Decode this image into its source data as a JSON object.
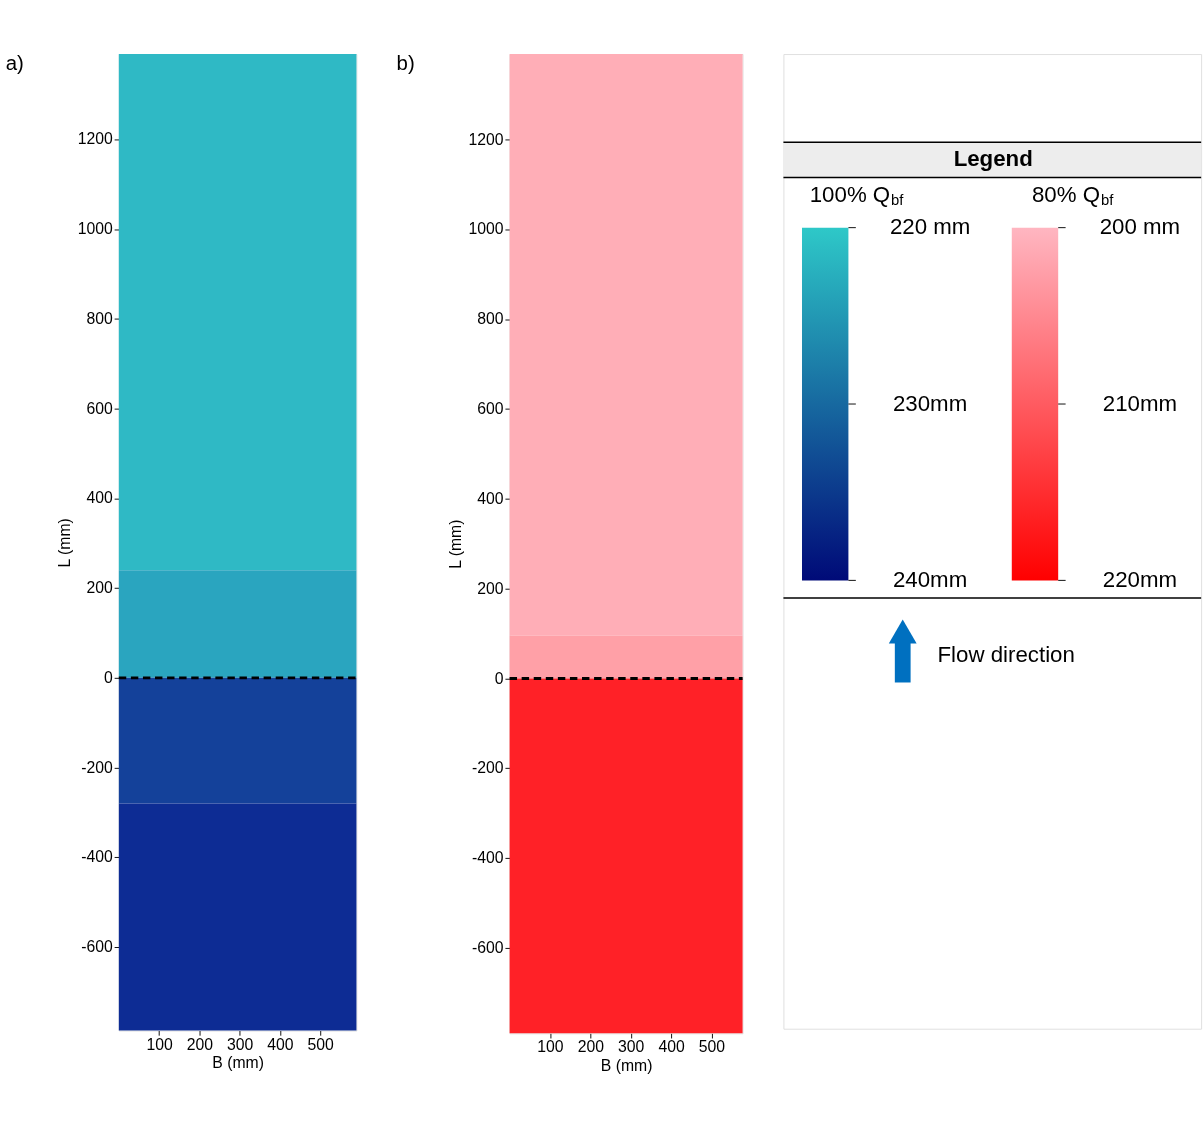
{
  "chart_data": [
    {
      "type": "bar",
      "title": "a)",
      "x": [
        295
      ],
      "xlabel": "B (mm)",
      "ylabel": "L (mm)",
      "xlim": [
        0,
        590
      ],
      "xticks": [
        100,
        200,
        300,
        400,
        500
      ],
      "ylim": [
        -786,
        1390
      ],
      "yticks": [
        -600,
        -400,
        -200,
        0,
        200,
        400,
        600,
        800,
        1000,
        1200
      ],
      "grid": false,
      "series": [
        {
          "color": "#2fb9c5",
          "base": [
            240
          ],
          "values": [
            1150
          ]
        },
        {
          "color": "#2aa5bf",
          "base": [
            0
          ],
          "values": [
            240
          ]
        },
        {
          "color": "#14419a",
          "base": [
            -280
          ],
          "values": [
            280
          ]
        },
        {
          "color": "#0d2c94",
          "base": [
            -786
          ],
          "values": [
            506
          ]
        }
      ],
      "ref_lines": [
        {
          "axis": "y",
          "value": 0,
          "color": "#000000",
          "line_style": "dashed"
        }
      ],
      "clabel": "100% Q$_{bf}$",
      "clim": [
        220,
        240
      ],
      "colors": [
        "#2ec8c8",
        "#000a78"
      ],
      "cticks": [
        {
          "value": 220,
          "label": "220 mm"
        },
        {
          "value": 230,
          "label": "230mm"
        },
        {
          "value": 240,
          "label": "240mm"
        }
      ]
    },
    {
      "type": "bar",
      "title": "b)",
      "x": [
        288.5
      ],
      "xlabel": "B (mm)",
      "ylabel": "L (mm)",
      "xlim": [
        0,
        577
      ],
      "xticks": [
        100,
        200,
        300,
        400,
        500
      ],
      "ylim": [
        -790,
        1390
      ],
      "yticks": [
        -600,
        -400,
        -200,
        0,
        200,
        400,
        600,
        800,
        1000,
        1200
      ],
      "grid": false,
      "series": [
        {
          "color": "#ffaeb7",
          "base": [
            95
          ],
          "values": [
            1295
          ]
        },
        {
          "color": "#ffa0a7",
          "base": [
            0
          ],
          "values": [
            95
          ]
        },
        {
          "color": "#ff2127",
          "base": [
            -790
          ],
          "values": [
            790
          ]
        }
      ],
      "ref_lines": [
        {
          "axis": "y",
          "value": 0,
          "color": "#000000",
          "line_style": "dashed"
        }
      ],
      "clabel": "80% Q$_{bf}$",
      "clim": [
        200,
        220
      ],
      "colors": [
        "#ffb6c1",
        "#ff0000"
      ],
      "cticks": [
        {
          "value": 200,
          "label": "200 mm"
        },
        {
          "value": 210,
          "label": "210mm"
        },
        {
          "value": 220,
          "label": "220mm"
        }
      ]
    },
    {
      "type": "other",
      "title": "Legend",
      "annotations": [
        "Flow direction"
      ],
      "color": "#0070c0"
    }
  ]
}
